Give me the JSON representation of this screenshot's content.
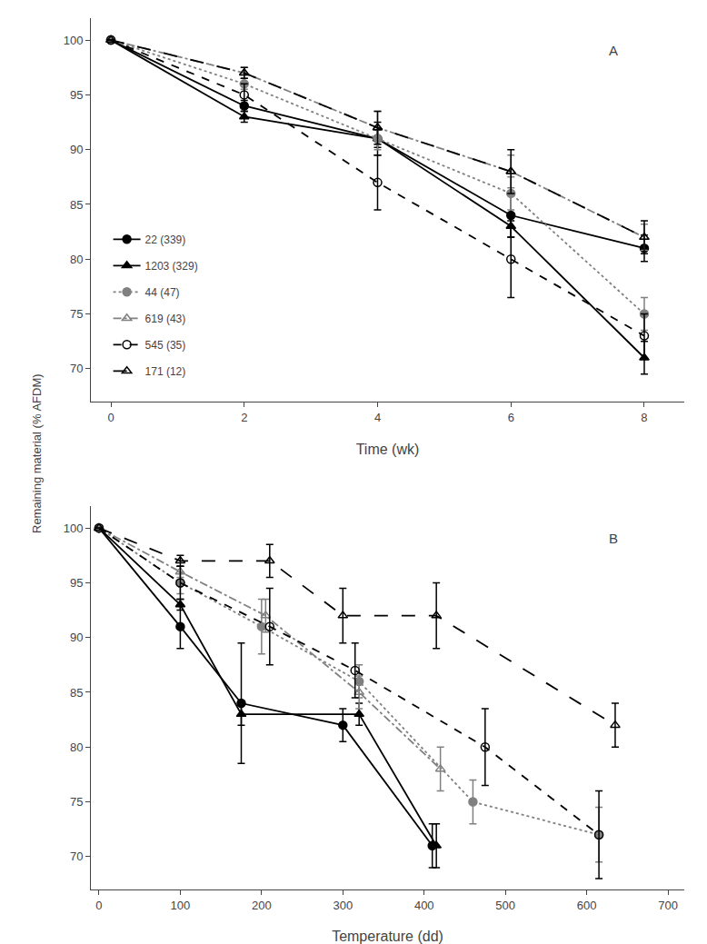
{
  "chart_data": [
    {
      "type": "line",
      "y_label": "Remaining material (% AFDM)",
      "x_label": "Time (wk)",
      "xlim": [
        -0.3,
        8.6
      ],
      "xticks": [
        0,
        2,
        4,
        6,
        8
      ],
      "ylim": [
        67,
        102
      ],
      "yticks": [
        70,
        75,
        80,
        85,
        90,
        95,
        100
      ],
      "grid": false,
      "legend": "lower left",
      "annotations": [
        "A"
      ],
      "series": [
        {
          "name": "22 (339)",
          "color": "black",
          "marker": "circle",
          "line_style": "solid",
          "x": [
            0,
            2,
            4,
            6,
            8
          ],
          "values": [
            100,
            94,
            91,
            84,
            81
          ],
          "errors": [
            0,
            0.5,
            1.5,
            2.0,
            1.2
          ]
        },
        {
          "name": "1203 (329)",
          "color": "black",
          "marker": "triangle-up",
          "line_style": "solid",
          "x": [
            0,
            2,
            4,
            6,
            8
          ],
          "values": [
            100,
            93,
            91,
            83,
            71
          ],
          "errors": [
            0,
            0.5,
            0.8,
            1.0,
            1.5
          ]
        },
        {
          "name": "44 (47)",
          "color": "gray",
          "marker": "circle",
          "line_style": "dot",
          "x": [
            0,
            2,
            4,
            6,
            8
          ],
          "values": [
            100,
            96,
            91,
            86,
            75
          ],
          "errors": [
            0,
            0.5,
            1.0,
            1.5,
            1.5
          ]
        },
        {
          "name": "619 (43)",
          "color": "gray",
          "marker": "triangle-up-open",
          "line_style": "dashdot",
          "x": [
            0,
            2,
            4,
            6,
            8
          ],
          "values": [
            100,
            97,
            92,
            88,
            82
          ],
          "errors": [
            0,
            0.5,
            1.5,
            1.5,
            1.2
          ]
        },
        {
          "name": "545 (35)",
          "color": "black",
          "marker": "circle-open",
          "line_style": "dash",
          "x": [
            0,
            2,
            4,
            6,
            8
          ],
          "values": [
            100,
            95,
            87,
            80,
            73
          ],
          "errors": [
            0,
            1.0,
            2.5,
            3.5,
            2.0
          ]
        },
        {
          "name": "171 (12)",
          "color": "black",
          "marker": "triangle-up-open",
          "line_style": "longdash",
          "x": [
            0,
            2,
            4,
            6,
            8
          ],
          "values": [
            100,
            97,
            92,
            88,
            82
          ],
          "errors": [
            0,
            0.5,
            1.5,
            2.0,
            1.5
          ]
        }
      ]
    },
    {
      "type": "line",
      "x_label": "Temperature (dd)",
      "xlim": [
        -10,
        720
      ],
      "xticks": [
        0,
        100,
        200,
        300,
        400,
        500,
        600,
        700
      ],
      "ylim": [
        67,
        102
      ],
      "yticks": [
        70,
        75,
        80,
        85,
        90,
        95,
        100
      ],
      "grid": false,
      "annotations": [
        "B"
      ],
      "series": [
        {
          "name": "22 (339)",
          "color": "black",
          "marker": "circle",
          "line_style": "solid",
          "x": [
            0,
            100,
            175,
            300,
            410
          ],
          "values": [
            100,
            91,
            84,
            82,
            71
          ],
          "errors": [
            0,
            2.0,
            5.5,
            1.5,
            2.0
          ]
        },
        {
          "name": "1203 (329)",
          "color": "black",
          "marker": "triangle-up",
          "line_style": "solid",
          "x": [
            0,
            100,
            175,
            320,
            415
          ],
          "values": [
            100,
            93,
            83,
            83,
            71
          ],
          "errors": [
            0,
            0.5,
            1.0,
            1.0,
            2.0
          ]
        },
        {
          "name": "44 (47)",
          "color": "gray",
          "marker": "circle",
          "line_style": "dot",
          "x": [
            0,
            100,
            200,
            320,
            460,
            615
          ],
          "values": [
            100,
            95,
            91,
            86,
            75,
            72
          ],
          "errors": [
            0,
            1.0,
            2.5,
            1.5,
            2.0,
            2.5
          ]
        },
        {
          "name": "619 (43)",
          "color": "gray",
          "marker": "triangle-up-open",
          "line_style": "dashdot",
          "x": [
            0,
            100,
            205,
            320,
            420
          ],
          "values": [
            100,
            96,
            92,
            85,
            78
          ],
          "errors": [
            0,
            0.5,
            1.5,
            1.5,
            2.0
          ]
        },
        {
          "name": "545 (35)",
          "color": "black",
          "marker": "circle-open",
          "line_style": "dash",
          "x": [
            0,
            100,
            210,
            315,
            475,
            615
          ],
          "values": [
            100,
            95,
            91,
            87,
            80,
            72
          ],
          "errors": [
            0,
            1.5,
            3.5,
            2.5,
            3.5,
            4.0
          ]
        },
        {
          "name": "171 (12)",
          "color": "black",
          "marker": "triangle-up-open",
          "line_style": "longdash",
          "x": [
            0,
            100,
            210,
            300,
            415,
            635
          ],
          "values": [
            100,
            97,
            97,
            92,
            92,
            82
          ],
          "errors": [
            0,
            0.5,
            1.5,
            2.5,
            3.0,
            2.0
          ]
        }
      ]
    }
  ]
}
